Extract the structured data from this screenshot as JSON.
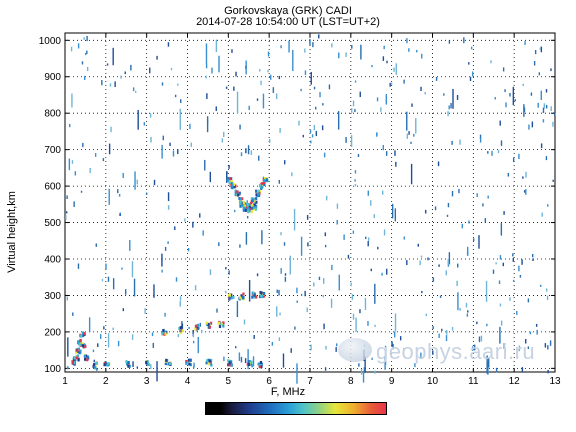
{
  "title_line1": "Gorkovskaya  (GRK) CADI",
  "title_line2": "2014-07-28   10:54:00 UT (LST=UT+2)",
  "watermark": "geophys.aari.ru",
  "chart_data": {
    "type": "scatter",
    "title": "Gorkovskaya  (GRK) CADI",
    "subtitle": "2014-07-28   10:54:00 UT (LST=UT+2)",
    "xlabel": "F, MHz",
    "ylabel": "Virtual height,km",
    "xlim": [
      1,
      13
    ],
    "ylim": [
      90,
      1020
    ],
    "xticks": [
      1,
      2,
      3,
      4,
      5,
      6,
      7,
      8,
      9,
      10,
      11,
      12,
      13
    ],
    "yticks": [
      100,
      200,
      300,
      400,
      500,
      600,
      700,
      800,
      900,
      1000
    ],
    "grid": true,
    "colorbar": {
      "colormap": [
        "#000000",
        "#1f3d8c",
        "#2a9fd6",
        "#8ad08a",
        "#e6e63a",
        "#e8344a"
      ]
    },
    "traces": [
      {
        "name": "",
        "points": [
          [
            1.7,
            108
          ],
          [
            2.0,
            110
          ],
          [
            2.5,
            112
          ],
          [
            3.0,
            115
          ],
          [
            3.5,
            116
          ],
          [
            4.0,
            117
          ],
          [
            4.5,
            116
          ],
          [
            5.0,
            114
          ],
          [
            5.5,
            112
          ],
          [
            5.75,
            110
          ]
        ]
      },
      {
        "name": "",
        "points": [
          [
            1.2,
            115
          ],
          [
            1.25,
            130
          ],
          [
            1.3,
            150
          ],
          [
            1.35,
            170
          ],
          [
            1.4,
            190
          ],
          [
            1.45,
            160
          ],
          [
            1.5,
            130
          ]
        ]
      },
      {
        "name": "",
        "points": [
          [
            3.4,
            200
          ],
          [
            3.8,
            205
          ],
          [
            4.2,
            212
          ],
          [
            4.5,
            218
          ],
          [
            4.8,
            220
          ]
        ]
      },
      {
        "name": "",
        "points": [
          [
            5.05,
            295
          ],
          [
            5.3,
            297
          ],
          [
            5.6,
            300
          ],
          [
            5.8,
            302
          ]
        ]
      },
      {
        "name": "",
        "points": [
          [
            5.0,
            615
          ],
          [
            5.1,
            600
          ],
          [
            5.2,
            580
          ],
          [
            5.3,
            560
          ],
          [
            5.4,
            545
          ],
          [
            5.5,
            548
          ],
          [
            5.6,
            560
          ],
          [
            5.7,
            580
          ],
          [
            5.8,
            600
          ],
          [
            5.9,
            615
          ]
        ]
      },
      {
        "name": "",
        "points": [
          [
            5.3,
            550
          ],
          [
            5.4,
            540
          ],
          [
            5.5,
            535
          ],
          [
            5.6,
            542
          ]
        ]
      }
    ]
  }
}
